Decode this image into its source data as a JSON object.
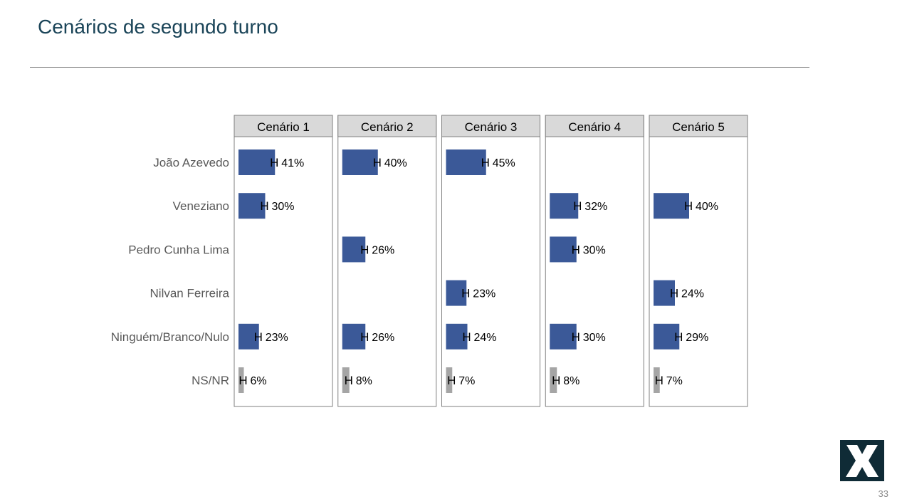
{
  "slide": {
    "title": "Cenários de segundo turno",
    "page_number": "33",
    "logo_icon": "x-logo-icon",
    "logo_color": "#0f2b36"
  },
  "chart_data": {
    "type": "bar",
    "orientation": "horizontal",
    "layout": "small-multiples",
    "categories": [
      "João Azevedo",
      "Veneziano",
      "Pedro Cunha Lima",
      "Nilvan Ferreira",
      "Ninguém/Branco/Nulo",
      "NS/NR"
    ],
    "panels": [
      {
        "title": "Cenário 1",
        "values": [
          41,
          30,
          null,
          null,
          23,
          6
        ]
      },
      {
        "title": "Cenário 2",
        "values": [
          40,
          null,
          26,
          null,
          26,
          8
        ]
      },
      {
        "title": "Cenário 3",
        "values": [
          45,
          null,
          null,
          23,
          24,
          7
        ]
      },
      {
        "title": "Cenário 4",
        "values": [
          null,
          32,
          30,
          null,
          30,
          8
        ]
      },
      {
        "title": "Cenário 5",
        "values": [
          null,
          40,
          null,
          24,
          29,
          7
        ]
      }
    ],
    "value_suffix": "%",
    "error_bar_glyph": "H",
    "colors": {
      "bar": "#3b5998",
      "nsnr_bar": "#a5a5a5",
      "panel_header_bg": "#d9d9d9",
      "panel_border": "#7f7f7f"
    },
    "xlim": [
      0,
      100
    ],
    "grid": false,
    "legend": "none"
  }
}
